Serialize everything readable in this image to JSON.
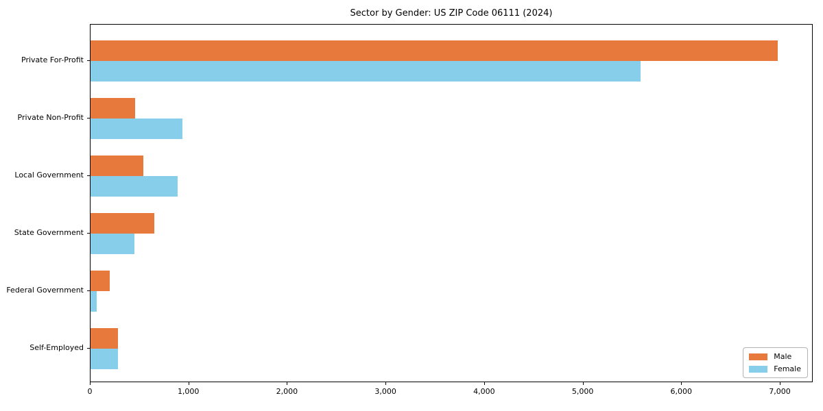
{
  "title": "Sector by Gender: US ZIP Code 06111 (2024)",
  "chart_data": {
    "type": "bar",
    "orientation": "horizontal",
    "title": "Sector by Gender: US ZIP Code 06111 (2024)",
    "xlabel": "",
    "ylabel": "",
    "categories": [
      "Private For-Profit",
      "Private Non-Profit",
      "Local Government",
      "State Government",
      "Federal Government",
      "Self-Employed"
    ],
    "series": [
      {
        "name": "Male",
        "color": "#E8793D",
        "values": [
          6970,
          455,
          535,
          650,
          195,
          278
        ]
      },
      {
        "name": "Female",
        "color": "#87CEEB",
        "values": [
          5580,
          930,
          880,
          445,
          65,
          281
        ]
      }
    ],
    "xlim": [
      0,
      7320
    ],
    "x_ticks": [
      0,
      1000,
      2000,
      3000,
      4000,
      5000,
      6000,
      7000
    ],
    "x_tick_labels": [
      "0",
      "1,000",
      "2,000",
      "3,000",
      "4,000",
      "5,000",
      "6,000",
      "7,000"
    ],
    "grid": false,
    "legend_position": "lower right"
  },
  "legend": {
    "items": [
      {
        "label": "Male",
        "color": "#E8793D"
      },
      {
        "label": "Female",
        "color": "#87CEEB"
      }
    ]
  }
}
